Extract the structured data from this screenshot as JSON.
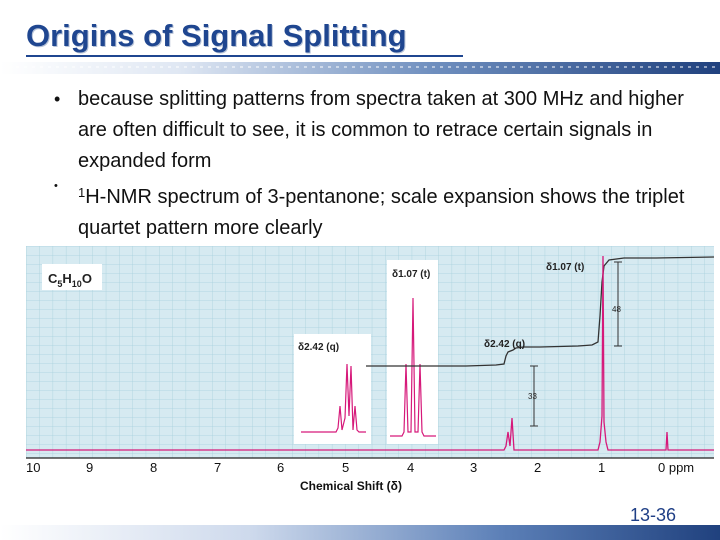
{
  "slide": {
    "title": "Origins of Signal Splitting",
    "bullets": [
      "because splitting patterns from spectra taken at 300 MHz and higher are often difficult to see, it is common to retrace certain signals in expanded form",
      "H-NMR spectrum of 3-pentanone; scale expansion shows the triplet quartet pattern more clearly"
    ],
    "bullet2_sup": "1",
    "number": "13-36"
  },
  "figure": {
    "formula_main": "C",
    "formula_sub1": "5",
    "formula_mid": "H",
    "formula_sub2": "10",
    "formula_end": "O",
    "inset_q_label": "δ2.42 (q)",
    "inset_t_label": "δ1.07 (t)",
    "main_t_label": "δ1.07 (t)",
    "main_q_label": "δ2.42 (q)",
    "integral_48": "48",
    "integral_33": "33",
    "axis_ticks": [
      "10",
      "9",
      "8",
      "7",
      "6",
      "5",
      "4",
      "3",
      "2",
      "1",
      "0 ppm"
    ],
    "axis_label": "Chemical Shift (δ)",
    "colors": {
      "spectrum": "#d6197a",
      "integral": "#333333",
      "grid": "#a7d0dd"
    }
  }
}
